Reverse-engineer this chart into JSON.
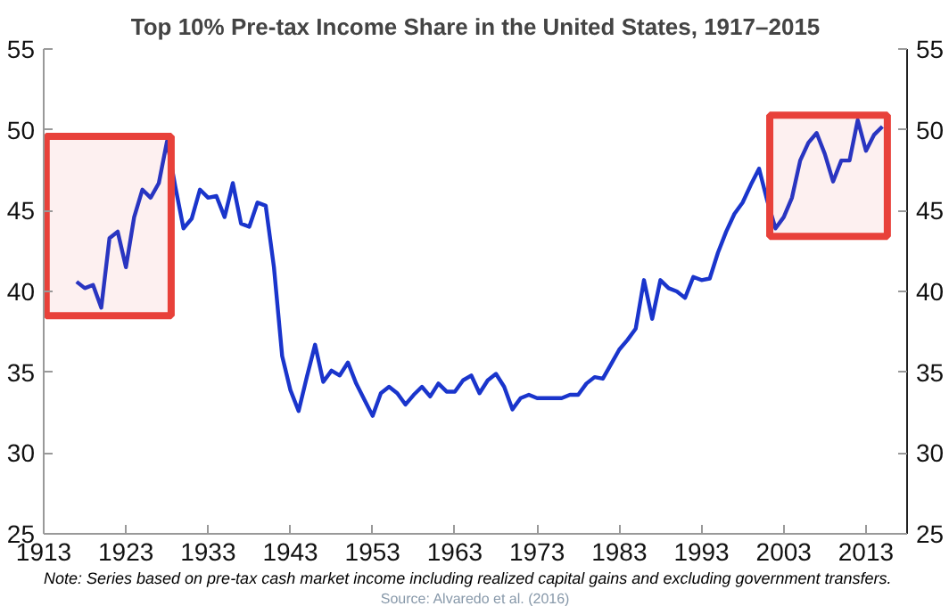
{
  "chart_data": {
    "type": "line",
    "title": "Top 10% Pre-tax Income Share in the United States, 1917–2015",
    "annotations": [
      "Note: Series based on pre-tax cash market income including realized capital gains and excluding government transfers.",
      "Source: Alvaredo et al. (2016)"
    ],
    "x": [
      1917,
      1918,
      1919,
      1920,
      1921,
      1922,
      1923,
      1924,
      1925,
      1926,
      1927,
      1928,
      1929,
      1930,
      1931,
      1932,
      1933,
      1934,
      1935,
      1936,
      1937,
      1938,
      1939,
      1940,
      1941,
      1942,
      1943,
      1944,
      1945,
      1946,
      1947,
      1948,
      1949,
      1950,
      1951,
      1952,
      1953,
      1954,
      1955,
      1956,
      1957,
      1958,
      1959,
      1960,
      1961,
      1962,
      1963,
      1964,
      1965,
      1966,
      1967,
      1968,
      1969,
      1970,
      1971,
      1972,
      1973,
      1974,
      1975,
      1976,
      1977,
      1978,
      1979,
      1980,
      1981,
      1982,
      1983,
      1984,
      1985,
      1986,
      1987,
      1988,
      1989,
      1990,
      1991,
      1992,
      1993,
      1994,
      1995,
      1996,
      1997,
      1998,
      1999,
      2000,
      2001,
      2002,
      2003,
      2004,
      2005,
      2006,
      2007,
      2008,
      2009,
      2010,
      2011,
      2012,
      2013,
      2014,
      2015
    ],
    "series": [
      {
        "color": "#1a35cc",
        "values": [
          40.6,
          40.2,
          40.4,
          39.0,
          43.3,
          43.7,
          41.5,
          44.6,
          46.3,
          45.8,
          46.7,
          49.3,
          46.5,
          43.9,
          44.5,
          46.3,
          45.8,
          45.9,
          44.6,
          46.7,
          44.2,
          44.0,
          45.5,
          45.3,
          41.5,
          36.0,
          33.9,
          32.6,
          34.7,
          36.7,
          34.4,
          35.1,
          34.8,
          35.6,
          34.3,
          33.3,
          32.3,
          33.7,
          34.1,
          33.7,
          33.0,
          33.6,
          34.1,
          33.5,
          34.3,
          33.8,
          33.8,
          34.5,
          34.8,
          33.7,
          34.5,
          34.9,
          34.1,
          32.7,
          33.4,
          33.6,
          33.4,
          33.4,
          33.4,
          33.4,
          33.6,
          33.6,
          34.3,
          34.7,
          34.6,
          35.5,
          36.4,
          37.0,
          37.7,
          40.7,
          38.3,
          40.7,
          40.2,
          40.0,
          39.6,
          40.9,
          40.7,
          40.8,
          42.4,
          43.7,
          44.8,
          45.5,
          46.6,
          47.6,
          45.6,
          43.9,
          44.6,
          45.8,
          48.1,
          49.2,
          49.8,
          48.5,
          46.8,
          48.1,
          48.1,
          50.6,
          48.7,
          49.7,
          50.2
        ]
      }
    ],
    "xlim": [
      1913,
      2018
    ],
    "xticks": [
      1913,
      1923,
      1933,
      1943,
      1953,
      1963,
      1973,
      1983,
      1993,
      2003,
      2013
    ],
    "ylim": [
      25,
      55
    ],
    "yticks": [
      25,
      30,
      35,
      40,
      45,
      50,
      55
    ],
    "y2lim": [
      25,
      55
    ],
    "y2ticks": [
      25,
      30,
      35,
      40,
      45,
      50,
      55
    ],
    "bands": [
      {
        "axis": "x",
        "from": 1913.3,
        "to": 1928.5,
        "label": null,
        "color": "#e8413a"
      },
      {
        "axis": "x",
        "from": 2001.3,
        "to": 2015.6,
        "label": null,
        "color": "#e8413a"
      }
    ],
    "grid": false,
    "marker": "none",
    "line_style": "solid"
  }
}
